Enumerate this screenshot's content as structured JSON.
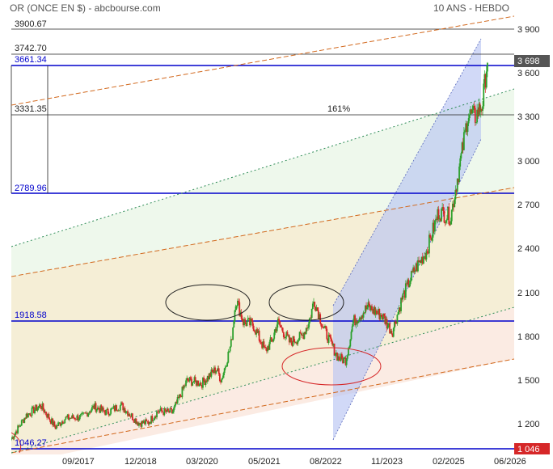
{
  "header": {
    "title": "OR (ONCE EN $) - abcbourse.com",
    "period": "10 ANS - HEBDO"
  },
  "colors": {
    "up": "#2ca02c",
    "down": "#d62728",
    "blue_level": "#0000cc",
    "channel_fill": "#b8c4f2",
    "orange_dash": "#d2691e",
    "green_dot": "#2e8b57",
    "ellipse_black": "#222222",
    "ellipse_red": "#d62728",
    "last_tag": "#555555",
    "low_tag": "#d62728"
  },
  "chart_data": {
    "type": "candlestick",
    "title": "OR (ONCE EN $)",
    "ylim": [
      1046,
      4000
    ],
    "y_ticks": [
      "1 200",
      "1 500",
      "1 800",
      "2 100",
      "2 400",
      "2 700",
      "3 000",
      "3 300",
      "3 600",
      "3 900"
    ],
    "x_ticks": [
      "09/2017",
      "12/2018",
      "03/2020",
      "05/2021",
      "08/2022",
      "11/2023",
      "02/2025",
      "06/2026"
    ],
    "levels": [
      {
        "label": "3900.67",
        "value": 3900.67,
        "style": "black"
      },
      {
        "label": "3742.70",
        "value": 3742.7,
        "style": "black"
      },
      {
        "label": "3661.34",
        "value": 3661.34,
        "style": "blue"
      },
      {
        "label": "3331.35",
        "value": 3331.35,
        "style": "black"
      },
      {
        "label": "2789.96",
        "value": 2789.96,
        "style": "blue"
      },
      {
        "label": "1918.58",
        "value": 1918.58,
        "style": "blue"
      },
      {
        "label": "1046.27",
        "value": 1046.27,
        "style": "blue"
      }
    ],
    "fib_label": "161%",
    "last_value": "3 698",
    "low_value": "1 046",
    "series": [
      {
        "x": 2016.0,
        "y": 1100
      },
      {
        "x": 2016.3,
        "y": 1260
      },
      {
        "x": 2016.6,
        "y": 1330
      },
      {
        "x": 2016.9,
        "y": 1180
      },
      {
        "x": 2017.1,
        "y": 1240
      },
      {
        "x": 2017.45,
        "y": 1250
      },
      {
        "x": 2017.7,
        "y": 1320
      },
      {
        "x": 2017.95,
        "y": 1280
      },
      {
        "x": 2018.25,
        "y": 1330
      },
      {
        "x": 2018.6,
        "y": 1210
      },
      {
        "x": 2018.8,
        "y": 1210
      },
      {
        "x": 2019.0,
        "y": 1290
      },
      {
        "x": 2019.3,
        "y": 1280
      },
      {
        "x": 2019.6,
        "y": 1500
      },
      {
        "x": 2019.9,
        "y": 1480
      },
      {
        "x": 2020.2,
        "y": 1580
      },
      {
        "x": 2020.3,
        "y": 1500
      },
      {
        "x": 2020.5,
        "y": 1750
      },
      {
        "x": 2020.6,
        "y": 2060
      },
      {
        "x": 2020.75,
        "y": 1900
      },
      {
        "x": 2020.95,
        "y": 1880
      },
      {
        "x": 2021.2,
        "y": 1700
      },
      {
        "x": 2021.35,
        "y": 1780
      },
      {
        "x": 2021.45,
        "y": 1900
      },
      {
        "x": 2021.7,
        "y": 1760
      },
      {
        "x": 2021.95,
        "y": 1800
      },
      {
        "x": 2022.1,
        "y": 1900
      },
      {
        "x": 2022.2,
        "y": 2050
      },
      {
        "x": 2022.4,
        "y": 1850
      },
      {
        "x": 2022.7,
        "y": 1650
      },
      {
        "x": 2022.85,
        "y": 1640
      },
      {
        "x": 2023.0,
        "y": 1900
      },
      {
        "x": 2023.3,
        "y": 2000
      },
      {
        "x": 2023.6,
        "y": 1940
      },
      {
        "x": 2023.8,
        "y": 1830
      },
      {
        "x": 2024.0,
        "y": 2060
      },
      {
        "x": 2024.25,
        "y": 2250
      },
      {
        "x": 2024.5,
        "y": 2380
      },
      {
        "x": 2024.75,
        "y": 2650
      },
      {
        "x": 2025.0,
        "y": 2620
      },
      {
        "x": 2025.25,
        "y": 3100
      },
      {
        "x": 2025.35,
        "y": 3320
      },
      {
        "x": 2025.5,
        "y": 3300
      },
      {
        "x": 2025.65,
        "y": 3390
      },
      {
        "x": 2025.75,
        "y": 3700
      }
    ]
  }
}
